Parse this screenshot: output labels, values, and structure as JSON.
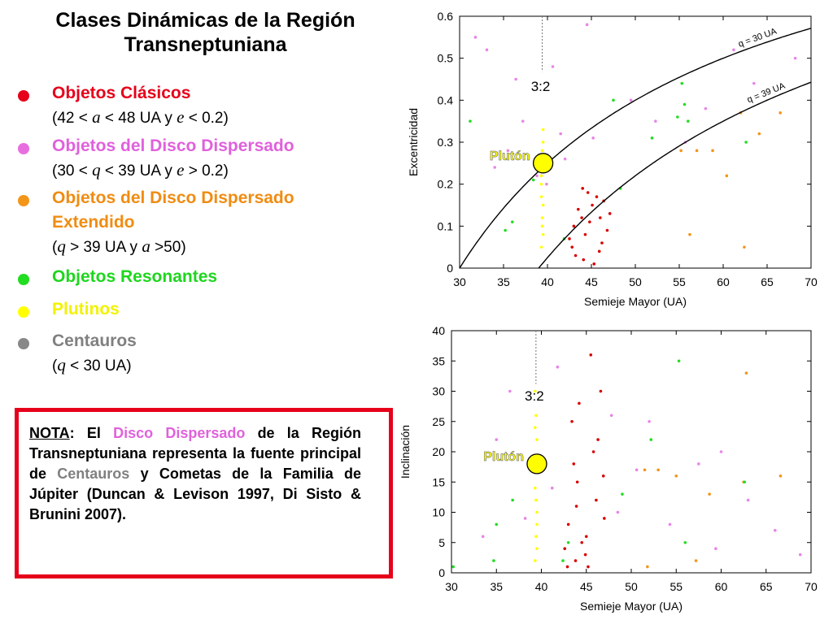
{
  "title": "Clases Dinámicas de la Región Transneptuniana",
  "legend": [
    {
      "label": "Objetos Clásicos",
      "sub": [
        "(42 < ",
        "a",
        " < 48 UA y ",
        "e",
        " < 0.2)"
      ],
      "color": "#e6001a",
      "labelColor": "#e6001a"
    },
    {
      "label": "Objetos del Disco Dispersado",
      "sub": [
        "(30 < ",
        "q",
        " < 39 UA y ",
        "e",
        " > 0.2)"
      ],
      "color": "#e86ee0",
      "labelColor": "#e061dc"
    },
    {
      "label": "Objetos del Disco Dispersado Extendido",
      "label_line1": "Objetos del Disco Dispersado",
      "label_line2": "Extendido",
      "sub": [
        "(",
        "q",
        " > 39 UA y ",
        "a",
        " >50)"
      ],
      "color": "#f39519",
      "labelColor": "#f08c12"
    },
    {
      "label": "Objetos Resonantes",
      "color": "#22dd22",
      "labelColor": "#1ed61e"
    },
    {
      "label": "Plutinos",
      "color": "#ffff00",
      "labelColor": "#f2f200"
    },
    {
      "label": "Centauros",
      "sub": [
        "(",
        "q",
        " < 30 UA)"
      ],
      "color": "#888888",
      "labelColor": "#808080"
    }
  ],
  "note": {
    "nota": "NOTA",
    "colon": ":",
    "t1": " El ",
    "disco": "Disco Dispersado",
    "t2": " de la Región Transneptuniana representa la fuente principal de ",
    "centauros": "Centauros",
    "t3": " y Cometas de la Familia de Júpiter (Duncan & Levison 1997, Di Sisto & Brunini 2007).",
    "border_color": "#e6001a"
  },
  "chart_data": [
    {
      "type": "scatter",
      "xlabel": "Semieje Mayor (UA)",
      "ylabel": "Excentricidad",
      "xlim": [
        30,
        70
      ],
      "ylim": [
        0,
        0.6
      ],
      "xticks": [
        "30",
        "35",
        "40",
        "45",
        "50",
        "55",
        "60",
        "65",
        "70"
      ],
      "yticks": [
        "0",
        "0.1",
        "0.2",
        "0.3",
        "0.4",
        "0.5",
        "0.6"
      ],
      "resonance_label": "3:2",
      "resonance_a": 39.4,
      "pluto_label": "Plutón",
      "pluto": {
        "a": 39.5,
        "value": 0.25
      },
      "curves": [
        {
          "label": "q = 30 UA",
          "q": 30
        },
        {
          "label": "q = 39 UA",
          "q": 39
        }
      ],
      "series": [
        {
          "name": "Objetos Clásicos",
          "color": "#d80000",
          "points": [
            [
              43.9,
              0.12
            ],
            [
              44.3,
              0.08
            ],
            [
              45.1,
              0.15
            ],
            [
              46.2,
              0.06
            ],
            [
              43.2,
              0.03
            ],
            [
              44.8,
              0.11
            ],
            [
              42.8,
              0.05
            ],
            [
              45.6,
              0.17
            ],
            [
              46.8,
              0.09
            ],
            [
              44.1,
              0.02
            ],
            [
              43.5,
              0.14
            ],
            [
              45.9,
              0.04
            ],
            [
              47.1,
              0.13
            ],
            [
              42.5,
              0.07
            ],
            [
              44.6,
              0.18
            ],
            [
              46.4,
              0.16
            ],
            [
              43.0,
              0.1
            ],
            [
              45.3,
              0.01
            ],
            [
              44.0,
              0.19
            ],
            [
              46.0,
              0.12
            ]
          ]
        },
        {
          "name": "Objetos del Disco Dispersado",
          "color": "#e884e8",
          "points": [
            [
              35.5,
              0.28
            ],
            [
              37.2,
              0.35
            ],
            [
              41.5,
              0.32
            ],
            [
              38.8,
              0.22
            ],
            [
              36.4,
              0.45
            ],
            [
              42.0,
              0.26
            ],
            [
              33.1,
              0.52
            ],
            [
              49.5,
              0.4
            ],
            [
              45.2,
              0.31
            ],
            [
              40.6,
              0.48
            ],
            [
              52.3,
              0.35
            ],
            [
              58.0,
              0.38
            ],
            [
              63.5,
              0.44
            ],
            [
              68.2,
              0.5
            ],
            [
              39.9,
              0.2
            ],
            [
              34.0,
              0.24
            ],
            [
              44.5,
              0.58
            ],
            [
              55.7,
              0.3
            ],
            [
              61.2,
              0.52
            ],
            [
              31.8,
              0.55
            ]
          ]
        },
        {
          "name": "Objetos del Disco Dispersado Extendido",
          "color": "#f39519",
          "points": [
            [
              55.2,
              0.28
            ],
            [
              57.0,
              0.28
            ],
            [
              58.8,
              0.28
            ],
            [
              62.0,
              0.37
            ],
            [
              66.5,
              0.37
            ],
            [
              60.4,
              0.22
            ],
            [
              56.2,
              0.08
            ],
            [
              62.4,
              0.05
            ],
            [
              64.1,
              0.32
            ]
          ]
        },
        {
          "name": "Objetos Resonantes",
          "color": "#22dd22",
          "points": [
            [
              35.2,
              0.09
            ],
            [
              36.0,
              0.11
            ],
            [
              47.5,
              0.4
            ],
            [
              55.3,
              0.44
            ],
            [
              55.6,
              0.39
            ],
            [
              54.8,
              0.36
            ],
            [
              56.0,
              0.35
            ],
            [
              51.9,
              0.31
            ],
            [
              48.3,
              0.19
            ],
            [
              62.6,
              0.3
            ],
            [
              31.2,
              0.35
            ],
            [
              38.4,
              0.21
            ],
            [
              41.9,
              0.07
            ]
          ]
        },
        {
          "name": "Plutinos",
          "color": "#ffff00",
          "points": [
            [
              39.3,
              0.05
            ],
            [
              39.4,
              0.1
            ],
            [
              39.5,
              0.15
            ],
            [
              39.3,
              0.2
            ],
            [
              39.4,
              0.25
            ],
            [
              39.5,
              0.3
            ],
            [
              39.4,
              0.12
            ],
            [
              39.3,
              0.22
            ],
            [
              39.5,
              0.08
            ],
            [
              39.4,
              0.28
            ],
            [
              39.3,
              0.17
            ],
            [
              39.5,
              0.33
            ]
          ]
        }
      ]
    },
    {
      "type": "scatter",
      "xlabel": "Semieje Mayor (UA)",
      "ylabel": "Inclinación",
      "xlim": [
        30,
        70
      ],
      "ylim": [
        0,
        40
      ],
      "xticks": [
        "30",
        "35",
        "40",
        "45",
        "50",
        "55",
        "60",
        "65",
        "70"
      ],
      "yticks": [
        "0",
        "5",
        "10",
        "15",
        "20",
        "25",
        "30",
        "35",
        "40"
      ],
      "resonance_label": "3:2",
      "resonance_a": 39.4,
      "pluto_label": "Plutón",
      "pluto": {
        "a": 39.5,
        "value": 18
      },
      "series": [
        {
          "name": "Objetos Clásicos",
          "color": "#d80000",
          "points": [
            [
              43.8,
              2
            ],
            [
              44.5,
              5
            ],
            [
              45.2,
              1
            ],
            [
              43.0,
              8
            ],
            [
              46.1,
              12
            ],
            [
              44.0,
              15
            ],
            [
              45.8,
              20
            ],
            [
              43.4,
              25
            ],
            [
              46.6,
              30
            ],
            [
              44.9,
              3
            ],
            [
              42.6,
              4
            ],
            [
              47.0,
              9
            ],
            [
              43.6,
              18
            ],
            [
              45.5,
              36
            ],
            [
              44.2,
              28
            ],
            [
              46.3,
              22
            ],
            [
              42.9,
              1
            ],
            [
              45.0,
              6
            ],
            [
              43.9,
              11
            ],
            [
              46.9,
              16
            ]
          ]
        },
        {
          "name": "Objetos del Disco Dispersado",
          "color": "#e884e8",
          "points": [
            [
              36.5,
              30
            ],
            [
              41.2,
              14
            ],
            [
              48.5,
              10
            ],
            [
              52.0,
              25
            ],
            [
              35.0,
              22
            ],
            [
              38.2,
              9
            ],
            [
              57.5,
              18
            ],
            [
              63.0,
              12
            ],
            [
              68.8,
              3
            ],
            [
              60.0,
              20
            ],
            [
              54.3,
              8
            ],
            [
              41.8,
              34
            ],
            [
              33.5,
              6
            ],
            [
              47.8,
              26
            ],
            [
              66.0,
              7
            ],
            [
              59.4,
              4
            ],
            [
              50.6,
              17
            ]
          ]
        },
        {
          "name": "Objetos del Disco Dispersado Extendido",
          "color": "#f39519",
          "points": [
            [
              51.5,
              17
            ],
            [
              53.0,
              17
            ],
            [
              55.0,
              16
            ],
            [
              62.5,
              15
            ],
            [
              66.6,
              16
            ],
            [
              58.7,
              13
            ],
            [
              51.8,
              1
            ],
            [
              62.8,
              33
            ],
            [
              57.2,
              2
            ]
          ]
        },
        {
          "name": "Objetos Resonantes",
          "color": "#22dd22",
          "points": [
            [
              35.0,
              8
            ],
            [
              34.7,
              2
            ],
            [
              42.4,
              2
            ],
            [
              43.0,
              5
            ],
            [
              55.3,
              35
            ],
            [
              52.2,
              22
            ],
            [
              62.6,
              15
            ],
            [
              56.0,
              5
            ],
            [
              49.0,
              13
            ],
            [
              36.8,
              12
            ],
            [
              30.2,
              1
            ]
          ]
        },
        {
          "name": "Plutinos",
          "color": "#ffff00",
          "points": [
            [
              39.3,
              2
            ],
            [
              39.4,
              6
            ],
            [
              39.5,
              10
            ],
            [
              39.3,
              14
            ],
            [
              39.4,
              18
            ],
            [
              39.5,
              22
            ],
            [
              39.4,
              26
            ],
            [
              39.3,
              30
            ],
            [
              39.5,
              4
            ],
            [
              39.4,
              12
            ],
            [
              39.3,
              24
            ],
            [
              39.5,
              8
            ]
          ]
        }
      ]
    }
  ]
}
